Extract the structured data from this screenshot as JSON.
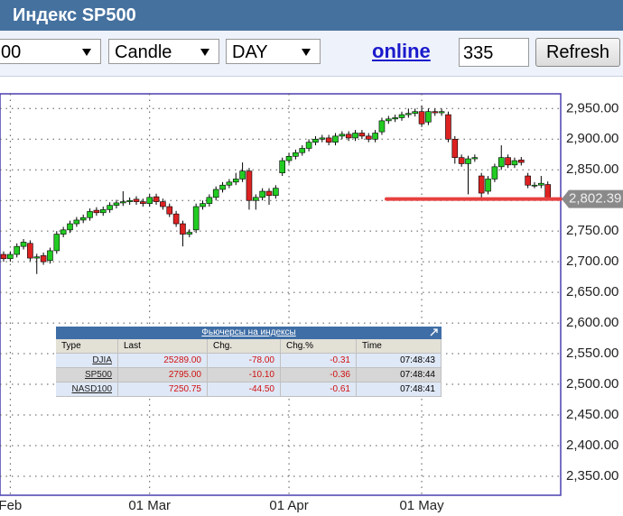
{
  "header": {
    "title": "Индекс SP500"
  },
  "toolbar": {
    "symbol": "00",
    "chart_type": "Candle",
    "period": "DAY",
    "link": "online",
    "count": "335",
    "button": "Refresh"
  },
  "chart_data": {
    "type": "candlestick",
    "categories": [
      null,
      "Feb",
      null,
      null,
      null,
      null,
      null,
      null,
      null,
      null,
      null,
      null,
      null,
      null,
      null,
      null,
      null,
      null,
      null,
      null,
      null,
      null,
      "01 Mar",
      null,
      null,
      null,
      null,
      null,
      null,
      null,
      null,
      null,
      null,
      null,
      null,
      null,
      null,
      null,
      null,
      null,
      null,
      null,
      null,
      "01 Apr",
      null,
      null,
      null,
      null,
      null,
      null,
      null,
      null,
      null,
      null,
      null,
      null,
      null,
      null,
      null,
      null,
      null,
      null,
      null,
      "01 May",
      null,
      null,
      null,
      null,
      null,
      null,
      null,
      null,
      null,
      null,
      null,
      null,
      null,
      null,
      null,
      null,
      null,
      null,
      null
    ],
    "series": [
      {
        "up_color": "#22cc22",
        "down_color": "#dd2222",
        "open": [
          2712,
          2705,
          2712,
          2725,
          2730,
          2706,
          2710,
          2702,
          2718,
          2745,
          2752,
          2762,
          2768,
          2772,
          2784,
          2780,
          2785,
          2792,
          2796,
          2798,
          2802,
          2798,
          2795,
          2806,
          2798,
          2790,
          2778,
          2762,
          2745,
          2752,
          2790,
          2795,
          2805,
          2818,
          2825,
          2830,
          2835,
          2848,
          2800,
          2805,
          2815,
          2808,
          2845,
          2865,
          2872,
          2878,
          2885,
          2895,
          2900,
          2902,
          2895,
          2905,
          2908,
          2902,
          2910,
          2905,
          2900,
          2912,
          2930,
          2933,
          2935,
          2940,
          2942,
          2945,
          2928,
          2945,
          2943,
          2940,
          2900,
          2870,
          2860,
          2868,
          2840,
          2815,
          2835,
          2855,
          2870,
          2858,
          2866,
          2840,
          2825,
          2825,
          2826
        ],
        "high": [
          2717,
          2717,
          2730,
          2737,
          2735,
          2713,
          2715,
          2723,
          2750,
          2757,
          2767,
          2773,
          2777,
          2787,
          2789,
          2790,
          2797,
          2801,
          2815,
          2805,
          2807,
          2803,
          2810,
          2811,
          2803,
          2795,
          2783,
          2767,
          2753,
          2795,
          2800,
          2810,
          2823,
          2830,
          2835,
          2845,
          2862,
          2853,
          2810,
          2820,
          2820,
          2825,
          2870,
          2877,
          2883,
          2890,
          2900,
          2905,
          2907,
          2907,
          2910,
          2913,
          2913,
          2915,
          2915,
          2910,
          2915,
          2935,
          2938,
          2940,
          2945,
          2950,
          2950,
          2955,
          2950,
          2950,
          2950,
          2945,
          2905,
          2875,
          2873,
          2875,
          2845,
          2840,
          2860,
          2890,
          2875,
          2870,
          2871,
          2845,
          2830,
          2840,
          2831
        ],
        "low": [
          2700,
          2700,
          2707,
          2720,
          2701,
          2680,
          2695,
          2697,
          2713,
          2740,
          2747,
          2757,
          2763,
          2767,
          2775,
          2775,
          2780,
          2787,
          2791,
          2793,
          2793,
          2790,
          2790,
          2793,
          2785,
          2773,
          2757,
          2725,
          2740,
          2747,
          2785,
          2790,
          2800,
          2813,
          2820,
          2825,
          2830,
          2785,
          2785,
          2800,
          2793,
          2803,
          2840,
          2860,
          2867,
          2873,
          2880,
          2890,
          2895,
          2890,
          2890,
          2900,
          2897,
          2897,
          2900,
          2895,
          2895,
          2907,
          2925,
          2928,
          2930,
          2935,
          2937,
          2920,
          2923,
          2938,
          2938,
          2895,
          2860,
          2855,
          2810,
          2863,
          2800,
          2810,
          2830,
          2850,
          2853,
          2853,
          2857,
          2820,
          2820,
          2820,
          2800
        ],
        "close": [
          2705,
          2712,
          2725,
          2732,
          2706,
          2708,
          2700,
          2718,
          2745,
          2752,
          2762,
          2768,
          2772,
          2782,
          2780,
          2785,
          2792,
          2796,
          2798,
          2800,
          2798,
          2795,
          2805,
          2798,
          2790,
          2778,
          2762,
          2745,
          2748,
          2790,
          2795,
          2805,
          2818,
          2825,
          2830,
          2835,
          2848,
          2800,
          2805,
          2815,
          2808,
          2820,
          2865,
          2872,
          2878,
          2885,
          2895,
          2900,
          2902,
          2895,
          2905,
          2908,
          2902,
          2910,
          2905,
          2900,
          2910,
          2930,
          2933,
          2935,
          2940,
          2942,
          2945,
          2925,
          2945,
          2943,
          2945,
          2900,
          2870,
          2860,
          2868,
          2870,
          2812,
          2835,
          2855,
          2870,
          2858,
          2865,
          2862,
          2825,
          2825,
          2828,
          2802
        ]
      }
    ],
    "ylim": [
      2319,
      2974
    ],
    "yticks": [
      {
        "value": 2350,
        "label": "2,350.00"
      },
      {
        "value": 2400,
        "label": "2,400.00"
      },
      {
        "value": 2450,
        "label": "2,450.00"
      },
      {
        "value": 2500,
        "label": "2,500.00"
      },
      {
        "value": 2550,
        "label": "2,550.00"
      },
      {
        "value": 2600,
        "label": "2,600.00"
      },
      {
        "value": 2650,
        "label": "2,650.00"
      },
      {
        "value": 2700,
        "label": "2,700.00"
      },
      {
        "value": 2750,
        "label": "2,750.00"
      },
      {
        "value": 2800,
        "label": "2,800.00"
      },
      {
        "value": 2850,
        "label": "2,850.00"
      },
      {
        "value": 2900,
        "label": "2,900.00"
      },
      {
        "value": 2950,
        "label": "2,950.00"
      }
    ],
    "grid": true,
    "last_price": {
      "value": 2802.39,
      "label": "2,802.39"
    },
    "level_line_color": "#e84040"
  },
  "table": {
    "title": "Фьючерсы на индексы",
    "columns": [
      "Type",
      "Last",
      "Chg.",
      "Chg.%",
      "Time"
    ],
    "rows": [
      [
        "DJIA",
        "25289.00",
        "-78.00",
        "-0.31",
        "07:48:43"
      ],
      [
        "SP500",
        "2795.00",
        "-10.10",
        "-0.36",
        "07:48:44"
      ],
      [
        "NASD100",
        "7250.75",
        "-44.50",
        "-0.61",
        "07:48:41"
      ]
    ]
  }
}
